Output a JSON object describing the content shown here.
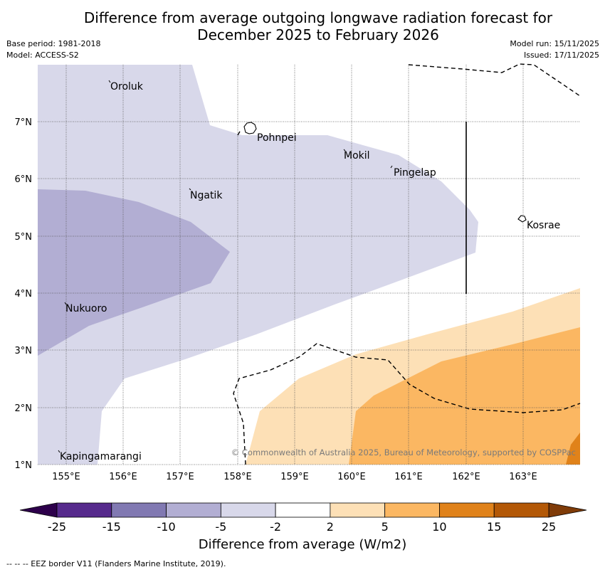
{
  "title": {
    "line1": "Difference from average outgoing longwave radiation forecast for",
    "line2": "December 2025 to February 2026"
  },
  "meta": {
    "base_period": "Base period: 1981-2018",
    "model": "Model: ACCESS-S2",
    "model_run": "Model run: 15/11/2025",
    "issued": "Issued: 17/11/2025"
  },
  "map": {
    "lon_range": [
      154.5,
      164.0
    ],
    "lat_range": [
      1.0,
      8.0
    ],
    "x_ticks": [
      "155°E",
      "156°E",
      "157°E",
      "158°E",
      "159°E",
      "160°E",
      "161°E",
      "162°E",
      "163°E"
    ],
    "y_ticks": [
      "7°N",
      "6°N",
      "5°N",
      "4°N",
      "3°N",
      "2°N",
      "1°N"
    ],
    "islands": [
      {
        "name": "Oroluk"
      },
      {
        "name": "Pohnpei"
      },
      {
        "name": "Mokil"
      },
      {
        "name": "Pingelap"
      },
      {
        "name": "Ngatik"
      },
      {
        "name": "Kosrae"
      },
      {
        "name": "Nukuoro"
      },
      {
        "name": "Kapingamarangi"
      }
    ],
    "copyright": "© Commonwealth of Australia 2025, Bureau of Meteorology, supported by COSPPac",
    "colors": {
      "light_purple": "#d8d8ea",
      "mid_purple": "#b2aed3",
      "light_orange": "#fde0b6",
      "mid_orange": "#fbb762",
      "dark_orange": "#e0821a"
    }
  },
  "colorbar": {
    "ticks": [
      "-25",
      "-15",
      "-10",
      "-5",
      "-2",
      "2",
      "5",
      "10",
      "15",
      "25"
    ],
    "colors": [
      "#562a8c",
      "#8179b2",
      "#b2aed3",
      "#d8d8ea",
      "#ffffff",
      "#fde0b6",
      "#fbb762",
      "#e0821a",
      "#b35806"
    ],
    "under_color": "#2d004b",
    "over_color": "#7f3b08",
    "label": "Difference from average (W/m2)"
  },
  "footnote": "--  --  -- EEZ border V11 (Flanders Marine Institute, 2019)."
}
